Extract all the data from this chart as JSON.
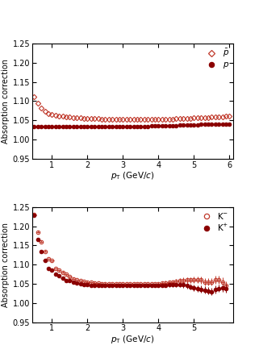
{
  "color_open": "#c0392b",
  "color_filled": "#8b0000",
  "top_panel": {
    "pbar_x": [
      0.5,
      0.6,
      0.7,
      0.8,
      0.9,
      1.0,
      1.1,
      1.2,
      1.3,
      1.4,
      1.5,
      1.6,
      1.7,
      1.8,
      1.9,
      2.0,
      2.1,
      2.2,
      2.3,
      2.4,
      2.5,
      2.6,
      2.7,
      2.8,
      2.9,
      3.0,
      3.1,
      3.2,
      3.3,
      3.4,
      3.5,
      3.6,
      3.7,
      3.8,
      3.9,
      4.0,
      4.1,
      4.2,
      4.3,
      4.4,
      4.5,
      4.6,
      4.7,
      4.8,
      4.9,
      5.0,
      5.1,
      5.2,
      5.3,
      5.4,
      5.5,
      5.6,
      5.7,
      5.8,
      5.9,
      6.0
    ],
    "pbar_y": [
      1.112,
      1.095,
      1.082,
      1.073,
      1.068,
      1.065,
      1.063,
      1.061,
      1.06,
      1.059,
      1.058,
      1.057,
      1.056,
      1.056,
      1.055,
      1.055,
      1.054,
      1.054,
      1.054,
      1.053,
      1.053,
      1.053,
      1.053,
      1.053,
      1.053,
      1.052,
      1.052,
      1.052,
      1.052,
      1.052,
      1.052,
      1.052,
      1.052,
      1.052,
      1.052,
      1.052,
      1.052,
      1.052,
      1.053,
      1.053,
      1.054,
      1.054,
      1.055,
      1.055,
      1.055,
      1.056,
      1.056,
      1.057,
      1.057,
      1.057,
      1.058,
      1.058,
      1.059,
      1.059,
      1.06,
      1.061
    ],
    "p_x": [
      0.5,
      0.6,
      0.7,
      0.8,
      0.9,
      1.0,
      1.1,
      1.2,
      1.3,
      1.4,
      1.5,
      1.6,
      1.7,
      1.8,
      1.9,
      2.0,
      2.1,
      2.2,
      2.3,
      2.4,
      2.5,
      2.6,
      2.7,
      2.8,
      2.9,
      3.0,
      3.1,
      3.2,
      3.3,
      3.4,
      3.5,
      3.6,
      3.7,
      3.8,
      3.9,
      4.0,
      4.1,
      4.2,
      4.3,
      4.4,
      4.5,
      4.6,
      4.7,
      4.8,
      4.9,
      5.0,
      5.1,
      5.2,
      5.3,
      5.4,
      5.5,
      5.6,
      5.7,
      5.8,
      5.9,
      6.0
    ],
    "p_y": [
      1.033,
      1.033,
      1.033,
      1.033,
      1.033,
      1.033,
      1.033,
      1.033,
      1.033,
      1.033,
      1.033,
      1.033,
      1.033,
      1.034,
      1.034,
      1.034,
      1.034,
      1.034,
      1.034,
      1.034,
      1.034,
      1.034,
      1.034,
      1.034,
      1.034,
      1.034,
      1.034,
      1.034,
      1.034,
      1.034,
      1.034,
      1.034,
      1.034,
      1.035,
      1.035,
      1.035,
      1.035,
      1.035,
      1.036,
      1.036,
      1.036,
      1.037,
      1.037,
      1.037,
      1.038,
      1.038,
      1.038,
      1.039,
      1.039,
      1.039,
      1.039,
      1.039,
      1.04,
      1.04,
      1.04,
      1.04
    ],
    "ylabel": "Absorption correction",
    "xlabel": "$p_{\\rm T}$ (GeV/$c$)",
    "ylim": [
      0.95,
      1.25
    ],
    "xlim": [
      0.45,
      6.1
    ],
    "xticks": [
      1,
      2,
      3,
      4,
      5,
      6
    ],
    "yticks": [
      0.95,
      1.0,
      1.05,
      1.1,
      1.15,
      1.2,
      1.25
    ],
    "legend1": "$\\bar{p}$",
    "legend2": "$p$"
  },
  "bottom_panel": {
    "km_x": [
      0.5,
      0.6,
      0.7,
      0.8,
      0.9,
      1.0,
      1.1,
      1.2,
      1.3,
      1.4,
      1.5,
      1.6,
      1.7,
      1.8,
      1.9,
      2.0,
      2.1,
      2.2,
      2.3,
      2.4,
      2.5,
      2.6,
      2.7,
      2.8,
      2.9,
      3.0,
      3.1,
      3.2,
      3.3,
      3.4,
      3.5,
      3.6,
      3.7,
      3.8,
      3.9,
      4.0,
      4.1,
      4.2,
      4.3,
      4.4,
      4.5,
      4.6,
      4.7,
      4.8,
      4.9,
      5.0,
      5.1,
      5.2,
      5.3,
      5.4,
      5.5,
      5.6,
      5.7,
      5.8,
      5.9
    ],
    "km_y": [
      1.23,
      1.185,
      1.16,
      1.135,
      1.115,
      1.11,
      1.09,
      1.085,
      1.08,
      1.075,
      1.068,
      1.063,
      1.06,
      1.058,
      1.056,
      1.055,
      1.054,
      1.053,
      1.052,
      1.051,
      1.051,
      1.05,
      1.05,
      1.05,
      1.05,
      1.05,
      1.05,
      1.05,
      1.05,
      1.05,
      1.05,
      1.05,
      1.05,
      1.05,
      1.05,
      1.05,
      1.052,
      1.053,
      1.054,
      1.055,
      1.057,
      1.058,
      1.059,
      1.06,
      1.06,
      1.06,
      1.06,
      1.06,
      1.055,
      1.055,
      1.055,
      1.06,
      1.06,
      1.055,
      1.045
    ],
    "km_yerr": [
      0.003,
      0.003,
      0.003,
      0.003,
      0.003,
      0.003,
      0.003,
      0.003,
      0.003,
      0.003,
      0.003,
      0.003,
      0.003,
      0.003,
      0.003,
      0.003,
      0.003,
      0.003,
      0.003,
      0.003,
      0.003,
      0.003,
      0.003,
      0.003,
      0.003,
      0.003,
      0.003,
      0.003,
      0.003,
      0.003,
      0.003,
      0.003,
      0.003,
      0.003,
      0.003,
      0.004,
      0.004,
      0.005,
      0.005,
      0.005,
      0.006,
      0.006,
      0.007,
      0.007,
      0.007,
      0.008,
      0.008,
      0.009,
      0.009,
      0.009,
      0.01,
      0.01,
      0.01,
      0.011,
      0.012
    ],
    "km_xerr": [
      0.05,
      0.05,
      0.05,
      0.05,
      0.05,
      0.05,
      0.05,
      0.05,
      0.05,
      0.05,
      0.05,
      0.05,
      0.05,
      0.05,
      0.05,
      0.05,
      0.05,
      0.05,
      0.05,
      0.05,
      0.05,
      0.05,
      0.05,
      0.05,
      0.05,
      0.05,
      0.05,
      0.05,
      0.05,
      0.05,
      0.05,
      0.05,
      0.05,
      0.05,
      0.05,
      0.05,
      0.05,
      0.05,
      0.05,
      0.05,
      0.05,
      0.05,
      0.05,
      0.05,
      0.05,
      0.05,
      0.05,
      0.05,
      0.05,
      0.05,
      0.05,
      0.05,
      0.05,
      0.05,
      0.05
    ],
    "kp_x": [
      0.5,
      0.6,
      0.7,
      0.8,
      0.9,
      1.0,
      1.1,
      1.2,
      1.3,
      1.4,
      1.5,
      1.6,
      1.7,
      1.8,
      1.9,
      2.0,
      2.1,
      2.2,
      2.3,
      2.4,
      2.5,
      2.6,
      2.7,
      2.8,
      2.9,
      3.0,
      3.1,
      3.2,
      3.3,
      3.4,
      3.5,
      3.6,
      3.7,
      3.8,
      3.9,
      4.0,
      4.1,
      4.2,
      4.3,
      4.4,
      4.5,
      4.6,
      4.7,
      4.8,
      4.9,
      5.0,
      5.1,
      5.2,
      5.3,
      5.4,
      5.5,
      5.6,
      5.7,
      5.8,
      5.9
    ],
    "kp_y": [
      1.228,
      1.165,
      1.135,
      1.11,
      1.09,
      1.085,
      1.075,
      1.07,
      1.065,
      1.058,
      1.058,
      1.055,
      1.052,
      1.05,
      1.048,
      1.047,
      1.046,
      1.045,
      1.045,
      1.045,
      1.045,
      1.045,
      1.045,
      1.045,
      1.045,
      1.045,
      1.045,
      1.045,
      1.045,
      1.045,
      1.045,
      1.045,
      1.045,
      1.045,
      1.045,
      1.045,
      1.045,
      1.046,
      1.047,
      1.047,
      1.047,
      1.047,
      1.047,
      1.045,
      1.042,
      1.04,
      1.038,
      1.036,
      1.034,
      1.032,
      1.03,
      1.035,
      1.038,
      1.04,
      1.038
    ],
    "kp_yerr": [
      0.003,
      0.003,
      0.003,
      0.003,
      0.003,
      0.003,
      0.003,
      0.003,
      0.003,
      0.003,
      0.003,
      0.003,
      0.003,
      0.003,
      0.003,
      0.003,
      0.003,
      0.003,
      0.003,
      0.003,
      0.003,
      0.003,
      0.003,
      0.003,
      0.003,
      0.003,
      0.003,
      0.003,
      0.003,
      0.003,
      0.003,
      0.003,
      0.003,
      0.003,
      0.003,
      0.004,
      0.004,
      0.005,
      0.005,
      0.005,
      0.006,
      0.006,
      0.007,
      0.007,
      0.007,
      0.008,
      0.008,
      0.009,
      0.009,
      0.009,
      0.01,
      0.01,
      0.01,
      0.011,
      0.012
    ],
    "kp_xerr": [
      0.05,
      0.05,
      0.05,
      0.05,
      0.05,
      0.05,
      0.05,
      0.05,
      0.05,
      0.05,
      0.05,
      0.05,
      0.05,
      0.05,
      0.05,
      0.05,
      0.05,
      0.05,
      0.05,
      0.05,
      0.05,
      0.05,
      0.05,
      0.05,
      0.05,
      0.05,
      0.05,
      0.05,
      0.05,
      0.05,
      0.05,
      0.05,
      0.05,
      0.05,
      0.05,
      0.05,
      0.05,
      0.05,
      0.05,
      0.05,
      0.05,
      0.05,
      0.05,
      0.05,
      0.05,
      0.05,
      0.05,
      0.05,
      0.05,
      0.05,
      0.05,
      0.05,
      0.05,
      0.05,
      0.05
    ],
    "ylabel": "Absorption correction",
    "xlabel": "$p_{\\rm T}$ (GeV/$c$)",
    "ylim": [
      0.95,
      1.25
    ],
    "xlim": [
      0.45,
      6.1
    ],
    "xticks": [
      1,
      2,
      3,
      4,
      5
    ],
    "yticks": [
      0.95,
      1.0,
      1.05,
      1.1,
      1.15,
      1.2,
      1.25
    ],
    "legend1": "K$^{-}$",
    "legend2": "K$^{+}$"
  }
}
